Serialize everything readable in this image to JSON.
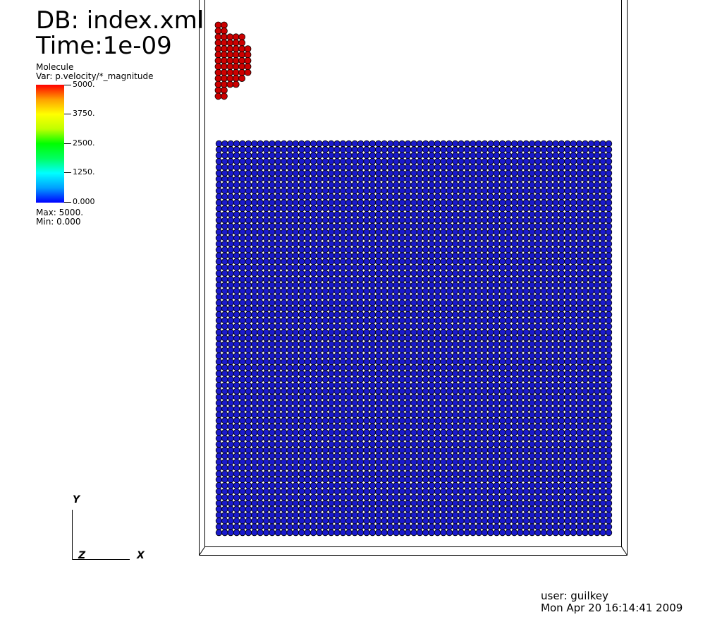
{
  "header": {
    "db": "DB: index.xml",
    "time": "Time:1e-09"
  },
  "legend": {
    "plot_name": "Molecule",
    "variable": "Var: p.velocity/*_magnitude",
    "ticks": [
      "5000.",
      "3750.",
      "2500.",
      "1250.",
      "0.000"
    ],
    "max": "Max:  5000.",
    "min": "Min:  0.000",
    "colormap": [
      "#0000ff",
      "#00a0ff",
      "#00ffff",
      "#00ff60",
      "#00ff00",
      "#c0ff00",
      "#ffff00",
      "#ffa000",
      "#ff0000"
    ]
  },
  "axes": {
    "y": "Y",
    "z": "Z",
    "x": "X"
  },
  "footer": {
    "user": "user: guilkey",
    "date": "Mon Apr 20 16:14:41 2009"
  },
  "scene": {
    "fast_particle_color": "#cc0000",
    "slow_particle_color": "#1a1acc",
    "outline_color": "#000000"
  }
}
